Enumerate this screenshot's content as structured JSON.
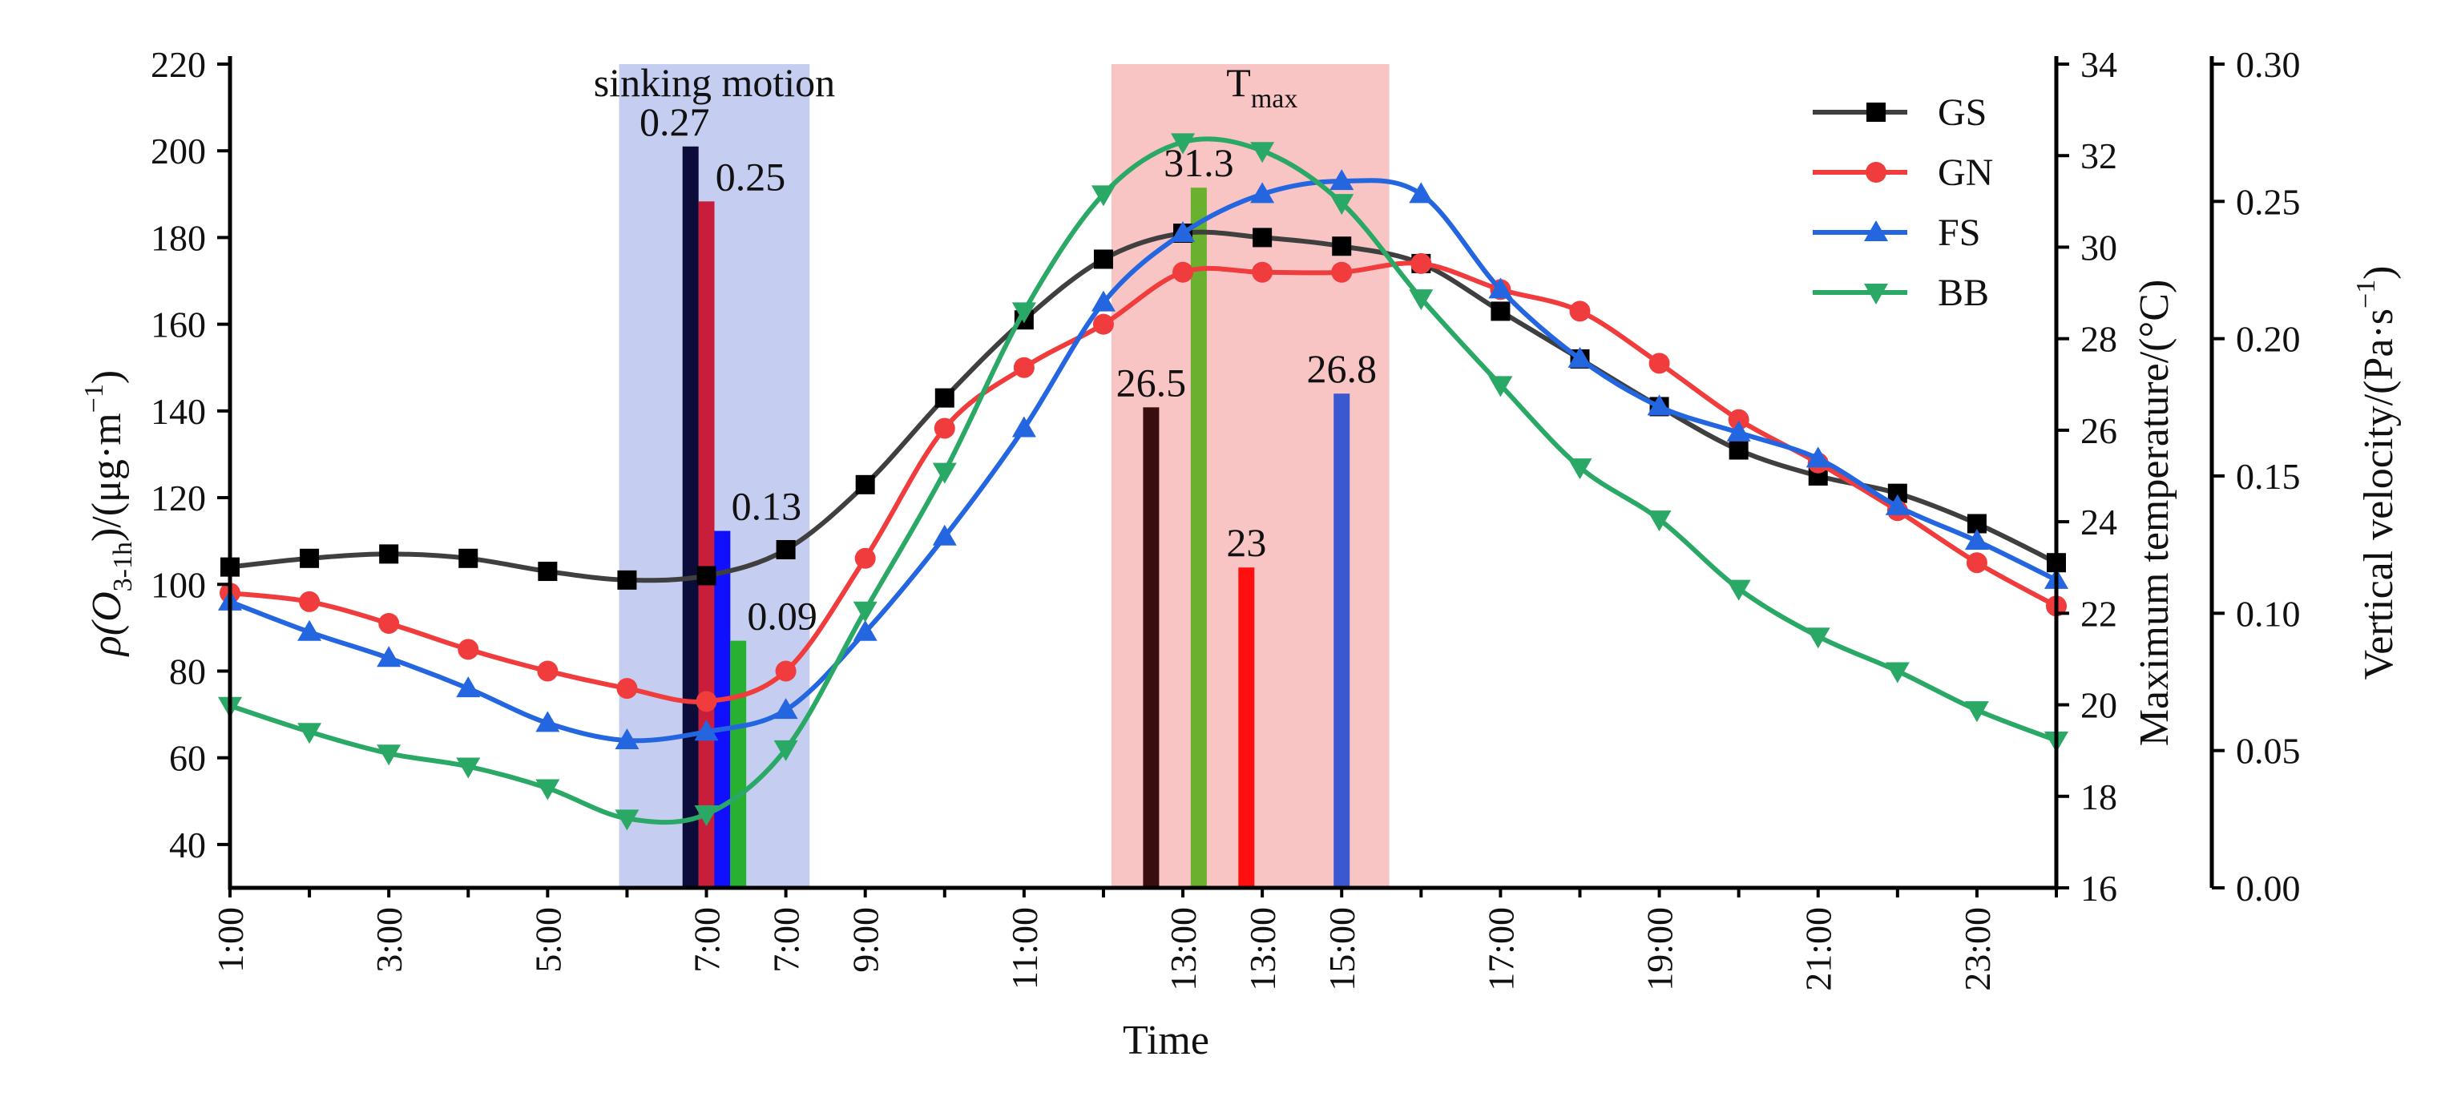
{
  "chart_data": {
    "type": "line",
    "title": "",
    "xlabel": "Time",
    "ylabel_left_prefix": "ρ(O",
    "ylabel_left_sub": "3-1h",
    "ylabel_left_suffix": ")/(μg·m",
    "ylabel_left_sup": "−1",
    "ylabel_left_end": ")",
    "ylabel_right1": "Maximum temperature/(°C)",
    "ylabel_right2_prefix": "Vertical velocity/(Pa·s",
    "ylabel_right2_sup": "−1",
    "ylabel_right2_end": ")",
    "x": [
      1,
      2,
      3,
      4,
      5,
      6,
      7,
      8,
      9,
      10,
      11,
      12,
      13,
      14,
      15,
      16,
      17,
      18,
      19,
      20,
      21,
      22,
      23,
      24
    ],
    "x_tick_labels": [
      "1:00",
      "3:00",
      "5:00",
      "7:00",
      "7:00",
      "9:00",
      "11:00",
      "13:00",
      "13:00",
      "15:00",
      "17:00",
      "19:00",
      "21:00",
      "23:00"
    ],
    "x_tick_positions": [
      1,
      3,
      5,
      7,
      8,
      9,
      11,
      13,
      14,
      15,
      17,
      19,
      21,
      23
    ],
    "xlim": [
      1,
      24
    ],
    "ylim": [
      30,
      220
    ],
    "y_ticks": [
      40,
      60,
      80,
      100,
      120,
      140,
      160,
      180,
      200,
      220
    ],
    "y_right1": {
      "lim": [
        16,
        34
      ],
      "ticks": [
        16,
        18,
        20,
        22,
        24,
        26,
        28,
        30,
        32,
        34
      ]
    },
    "y_right2": {
      "lim": [
        0,
        0.3
      ],
      "ticks": [
        "0.00",
        "0.05",
        "0.10",
        "0.15",
        "0.20",
        "0.25",
        "0.30"
      ],
      "tick_values": [
        0,
        0.05,
        0.1,
        0.15,
        0.2,
        0.25,
        0.3
      ]
    },
    "series": [
      {
        "name": "GS",
        "color": "#3f3f3f",
        "marker": "square",
        "values": [
          104,
          106,
          107,
          106,
          103,
          101,
          102,
          108,
          123,
          143,
          161,
          175,
          181,
          180,
          178,
          174,
          163,
          152,
          141,
          131,
          125,
          121,
          114,
          105
        ]
      },
      {
        "name": "GN",
        "color": "#f03c3c",
        "marker": "circle",
        "values": [
          98,
          96,
          91,
          85,
          80,
          76,
          73,
          80,
          106,
          136,
          150,
          160,
          172,
          172,
          172,
          174,
          168,
          163,
          151,
          138,
          128,
          117,
          105,
          95
        ]
      },
      {
        "name": "FS",
        "color": "#2466e0",
        "marker": "triangle-up",
        "values": [
          96,
          89,
          83,
          76,
          68,
          64,
          66,
          71,
          89,
          111,
          136,
          165,
          181,
          190,
          193,
          190,
          168,
          152,
          141,
          135,
          129,
          118,
          110,
          101
        ]
      },
      {
        "name": "BB",
        "color": "#2aa866",
        "marker": "triangle-down",
        "values": [
          72,
          66,
          61,
          58,
          53,
          46,
          47,
          62,
          94,
          126,
          163,
          190,
          202,
          200,
          188,
          166,
          146,
          127,
          115,
          99,
          88,
          80,
          71,
          64
        ]
      }
    ],
    "shaded_regions": [
      {
        "label": "sinking motion",
        "x_from": 5.9,
        "x_to": 8.3,
        "color": "#c5cdf0"
      },
      {
        "label_main": "T",
        "label_sub": "max",
        "x_from": 12.1,
        "x_to": 15.6,
        "color": "#f8c4c4"
      }
    ],
    "velocity_bars": [
      {
        "series": "GS",
        "x": 6.8,
        "value": 0.27,
        "label": "0.27",
        "color": "#0c0c3a"
      },
      {
        "series": "GN",
        "x": 7.0,
        "value": 0.25,
        "label": "0.25",
        "color": "#c81e3c"
      },
      {
        "series": "FS",
        "x": 7.2,
        "value": 0.13,
        "label": "0.13",
        "color": "#1010ff"
      },
      {
        "series": "BB",
        "x": 7.4,
        "value": 0.09,
        "label": "0.09",
        "color": "#28b030"
      }
    ],
    "temperature_bars": [
      {
        "series": "GS",
        "x": 12.6,
        "value": 26.5,
        "label": "26.5",
        "color": "#3a0e0e"
      },
      {
        "series": "BB",
        "x": 13.2,
        "value": 31.3,
        "label": "31.3",
        "color": "#6cb030"
      },
      {
        "series": "GN",
        "x": 13.8,
        "value": 23,
        "label": "23",
        "color": "#ff1010"
      },
      {
        "series": "FS",
        "x": 15.0,
        "value": 26.8,
        "label": "26.8",
        "color": "#3c58d0"
      }
    ],
    "legend": {
      "placement": "top-right",
      "entries": [
        "GS",
        "GN",
        "FS",
        "BB"
      ]
    }
  }
}
